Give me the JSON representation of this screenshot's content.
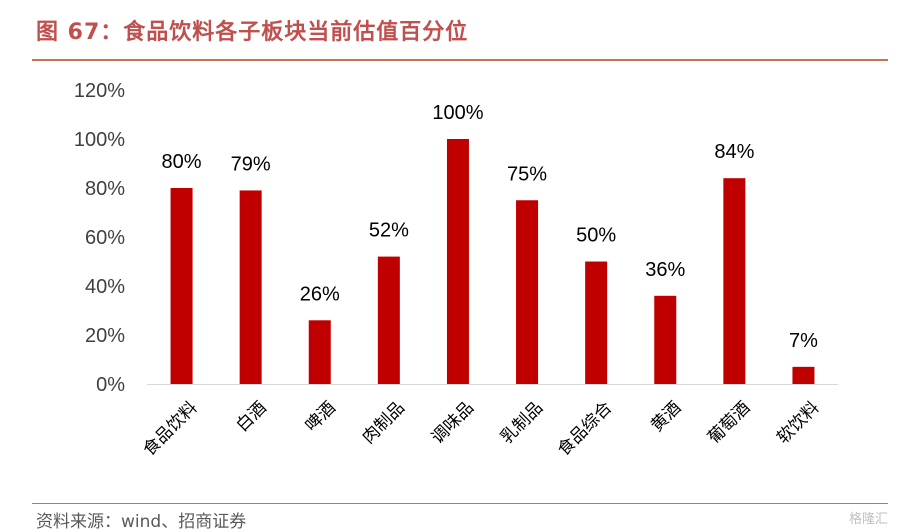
{
  "figure": {
    "title": "图 67：食品饮料各子板块当前估值百分位",
    "source": "资料来源：wind、招商证券",
    "watermark": "格隆汇"
  },
  "colors": {
    "bar": "#C00000",
    "title": "#C0504D",
    "rule": "#C8734F",
    "axis": "#D9D9D9"
  },
  "chart_data": {
    "type": "bar",
    "categories": [
      "食品饮料",
      "白酒",
      "啤酒",
      "肉制品",
      "调味品",
      "乳制品",
      "食品综合",
      "黄酒",
      "葡萄酒",
      "软饮料"
    ],
    "values": [
      80,
      79,
      26,
      52,
      100,
      75,
      50,
      36,
      84,
      7
    ],
    "data_labels": [
      "80%",
      "79%",
      "26%",
      "52%",
      "100%",
      "75%",
      "50%",
      "36%",
      "84%",
      "7%"
    ],
    "y_ticks": [
      "0%",
      "20%",
      "40%",
      "60%",
      "80%",
      "100%",
      "120%"
    ],
    "ylim": [
      0,
      120
    ],
    "grid": false,
    "legend": "none"
  }
}
